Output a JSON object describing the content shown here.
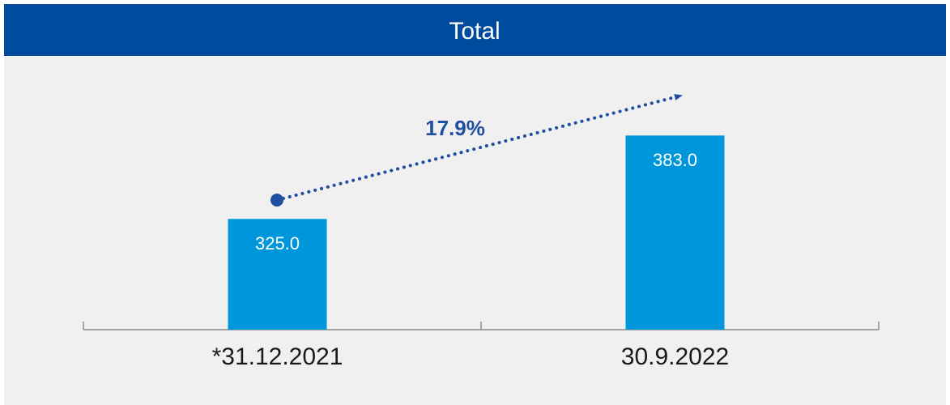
{
  "chart_data": {
    "type": "bar",
    "title": "Total",
    "categories": [
      "*31.12.2021",
      "30.9.2022"
    ],
    "values": [
      325.0,
      383.0
    ],
    "value_labels": [
      "325.0",
      "383.0"
    ],
    "color": "#0096db",
    "annotation": "17.9%",
    "ylim": [
      248,
      435
    ]
  }
}
